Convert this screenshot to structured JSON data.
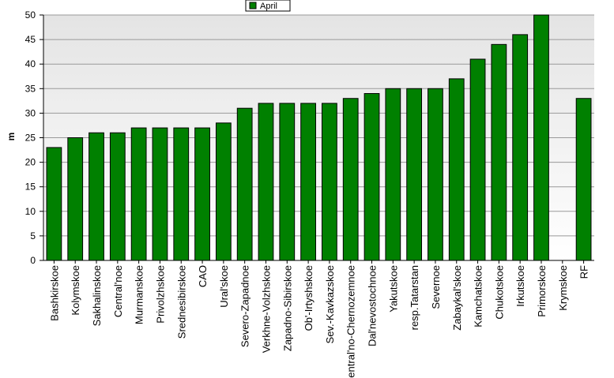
{
  "chart_data": {
    "type": "bar",
    "y_label": "m",
    "categories": [
      "Bashkirskoe",
      "Kolymskoe",
      "Sakhalinskoe",
      "Central'noe",
      "Murmanskoe",
      "Privolzhskoe",
      "Srednesibirskoe",
      "CAO",
      "Ural'skoe",
      "Severo-Zapadnoe",
      "Verkhne-Volzhskoe",
      "Zapadno-Sibirskoe",
      "Ob'-Irtyshskoe",
      "Sev.-Kavkazskoe",
      "Central'no-Chernozemnoe",
      "Dal'nevostochnoe",
      "Yakutskoe",
      "resp.Tatarstan",
      "Severnoe",
      "Zabaykal'skoe",
      "Kamchatskoe",
      "Chukotskoe",
      "Irkutskoe",
      "Primorskoe",
      "Krymskoe",
      "RF"
    ],
    "series": [
      {
        "name": "April",
        "color": "#008000",
        "values": [
          23,
          25,
          26,
          26,
          27,
          27,
          27,
          27,
          28,
          31,
          32,
          32,
          32,
          32,
          33,
          34,
          35,
          35,
          35,
          37,
          41,
          44,
          46,
          50,
          null,
          33
        ]
      }
    ],
    "ylim": [
      0,
      50
    ],
    "yticks": [
      0,
      5,
      10,
      15,
      20,
      25,
      30,
      35,
      40,
      45,
      50
    ],
    "grid": true
  }
}
